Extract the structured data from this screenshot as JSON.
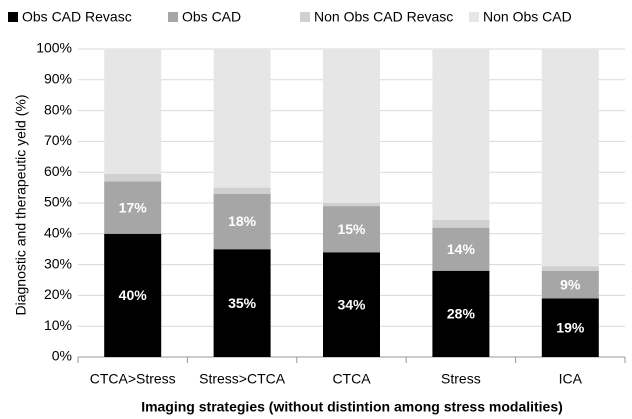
{
  "chart_data": {
    "type": "stacked_bar",
    "categories": [
      "CTCA>Stress",
      "Stress>CTCA",
      "CTCA",
      "Stress",
      "ICA"
    ],
    "series": [
      {
        "name": "Obs CAD Revasc",
        "color": "#000000",
        "values": [
          40,
          35,
          34,
          28,
          19
        ],
        "value_labels": [
          "40%",
          "35%",
          "34%",
          "28%",
          "19%"
        ]
      },
      {
        "name": "Obs CAD",
        "color": "#a6a6a6",
        "values": [
          17,
          18,
          15,
          14,
          9
        ],
        "value_labels": [
          "17%",
          "18%",
          "15%",
          "14%",
          "9%"
        ]
      },
      {
        "name": "Non Obs CAD Revasc",
        "color": "#d0d0d0",
        "values": [
          2.5,
          2,
          1,
          2.5,
          1.5
        ]
      },
      {
        "name": "Non Obs CAD",
        "color": "#e6e6e6",
        "values": [
          40.5,
          45,
          50,
          55.5,
          70.5
        ]
      }
    ],
    "y_label": "Diagnostic and therapeutic yeld (%)",
    "x_label": "Imaging strategies (without distintion among stress modalities)",
    "ylim": [
      0,
      100
    ],
    "yticks": [
      {
        "value": 0,
        "label": "0%"
      },
      {
        "value": 10,
        "label": "10%"
      },
      {
        "value": 20,
        "label": "20%"
      },
      {
        "value": 30,
        "label": "30%"
      },
      {
        "value": 40,
        "label": "40%"
      },
      {
        "value": 50,
        "label": "50%"
      },
      {
        "value": 60,
        "label": "60%"
      },
      {
        "value": 70,
        "label": "70%"
      },
      {
        "value": 80,
        "label": "80%"
      },
      {
        "value": 90,
        "label": "90%"
      },
      {
        "value": 100,
        "label": "100%"
      }
    ],
    "grid": true,
    "legend": "top"
  }
}
